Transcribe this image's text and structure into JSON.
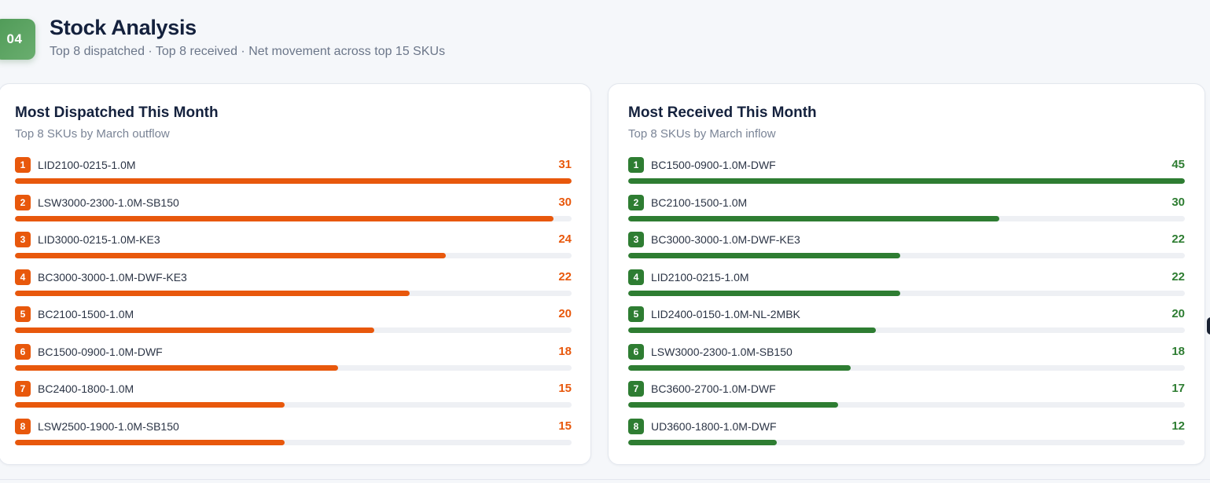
{
  "section": {
    "number": "04",
    "title": "Stock Analysis",
    "subtitle": "Top 8 dispatched · Top 8 received · Net movement across top 15 SKUs"
  },
  "colors": {
    "dispatched": "#e8580c",
    "received": "#2e7d32",
    "badge": "#5aa15f"
  },
  "dispatched": {
    "title": "Most Dispatched This Month",
    "subtitle": "Top 8 SKUs by March outflow",
    "max": 31,
    "items": [
      {
        "rank": "1",
        "sku": "LID2100-0215-1.0M",
        "qty": 31
      },
      {
        "rank": "2",
        "sku": "LSW3000-2300-1.0M-SB150",
        "qty": 30
      },
      {
        "rank": "3",
        "sku": "LID3000-0215-1.0M-KE3",
        "qty": 24
      },
      {
        "rank": "4",
        "sku": "BC3000-3000-1.0M-DWF-KE3",
        "qty": 22
      },
      {
        "rank": "5",
        "sku": "BC2100-1500-1.0M",
        "qty": 20
      },
      {
        "rank": "6",
        "sku": "BC1500-0900-1.0M-DWF",
        "qty": 18
      },
      {
        "rank": "7",
        "sku": "BC2400-1800-1.0M",
        "qty": 15
      },
      {
        "rank": "8",
        "sku": "LSW2500-1900-1.0M-SB150",
        "qty": 15
      }
    ]
  },
  "received": {
    "title": "Most Received This Month",
    "subtitle": "Top 8 SKUs by March inflow",
    "max": 45,
    "items": [
      {
        "rank": "1",
        "sku": "BC1500-0900-1.0M-DWF",
        "qty": 45
      },
      {
        "rank": "2",
        "sku": "BC2100-1500-1.0M",
        "qty": 30
      },
      {
        "rank": "3",
        "sku": "BC3000-3000-1.0M-DWF-KE3",
        "qty": 22
      },
      {
        "rank": "4",
        "sku": "LID2100-0215-1.0M",
        "qty": 22
      },
      {
        "rank": "5",
        "sku": "LID2400-0150-1.0M-NL-2MBK",
        "qty": 20
      },
      {
        "rank": "6",
        "sku": "LSW3000-2300-1.0M-SB150",
        "qty": 18
      },
      {
        "rank": "7",
        "sku": "BC3600-2700-1.0M-DWF",
        "qty": 17
      },
      {
        "rank": "8",
        "sku": "UD3600-1800-1.0M-DWF",
        "qty": 12
      }
    ]
  }
}
